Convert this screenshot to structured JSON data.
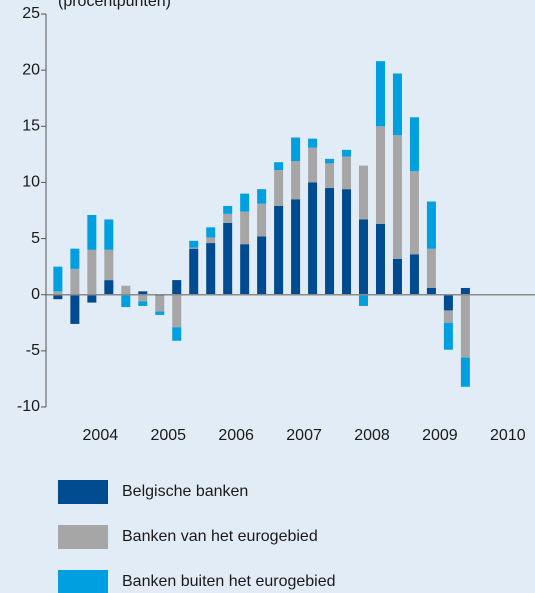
{
  "chart_data": {
    "type": "stacked-bar",
    "ylabel": "(procentpunten)",
    "x": [
      2003.875,
      2004.125,
      2004.375,
      2004.625,
      2004.875,
      2005.125,
      2005.375,
      2005.625,
      2005.875,
      2006.125,
      2006.375,
      2006.625,
      2006.875,
      2007.125,
      2007.375,
      2007.625,
      2007.875,
      2008.125,
      2008.375,
      2008.625,
      2008.875,
      2009.125,
      2009.375,
      2009.625,
      2009.875
    ],
    "series": [
      {
        "name": "Belgische banken",
        "color": "#004a8f",
        "values": [
          -0.4,
          -2.6,
          -0.7,
          1.3,
          0,
          0.3,
          -0.1,
          1.3,
          4.1,
          4.6,
          6.4,
          4.5,
          5.2,
          7.9,
          8.5,
          10.0,
          9.5,
          9.4,
          6.7,
          6.3,
          3.2,
          3.6,
          0.6,
          -1.4,
          0.6
        ]
      },
      {
        "name": "Banken van het eurogebied",
        "color": "#a6a6a6",
        "values": [
          0.3,
          2.3,
          4.0,
          2.7,
          0.8,
          -0.6,
          -1.4,
          -2.9,
          0.1,
          0.5,
          0.8,
          2.9,
          2.9,
          3.2,
          3.4,
          3.1,
          2.2,
          2.9,
          4.8,
          8.7,
          11.0,
          7.4,
          3.5,
          -1.1,
          -5.6
        ]
      },
      {
        "name": "Banken buiten het eurogebied",
        "color": "#00a0e0",
        "values": [
          2.2,
          1.8,
          3.1,
          2.7,
          -1.1,
          -0.4,
          -0.3,
          -1.2,
          0.6,
          0.9,
          0.7,
          1.6,
          1.3,
          0.7,
          2.1,
          0.8,
          0.4,
          0.6,
          -1.0,
          5.8,
          5.5,
          4.8,
          4.2,
          -2.4,
          -2.6
        ]
      }
    ],
    "xlim": [
      2003.7,
      2010.9
    ],
    "xticks": [
      {
        "value": 2004.5,
        "label": "2004"
      },
      {
        "value": 2005.5,
        "label": "2005"
      },
      {
        "value": 2006.5,
        "label": "2006"
      },
      {
        "value": 2007.5,
        "label": "2007"
      },
      {
        "value": 2008.5,
        "label": "2008"
      },
      {
        "value": 2009.5,
        "label": "2009"
      },
      {
        "value": 2010.5,
        "label": "2010"
      }
    ],
    "ylim": [
      -10,
      25
    ],
    "yticks": [
      -10,
      -5,
      0,
      5,
      10,
      15,
      20,
      25
    ]
  }
}
